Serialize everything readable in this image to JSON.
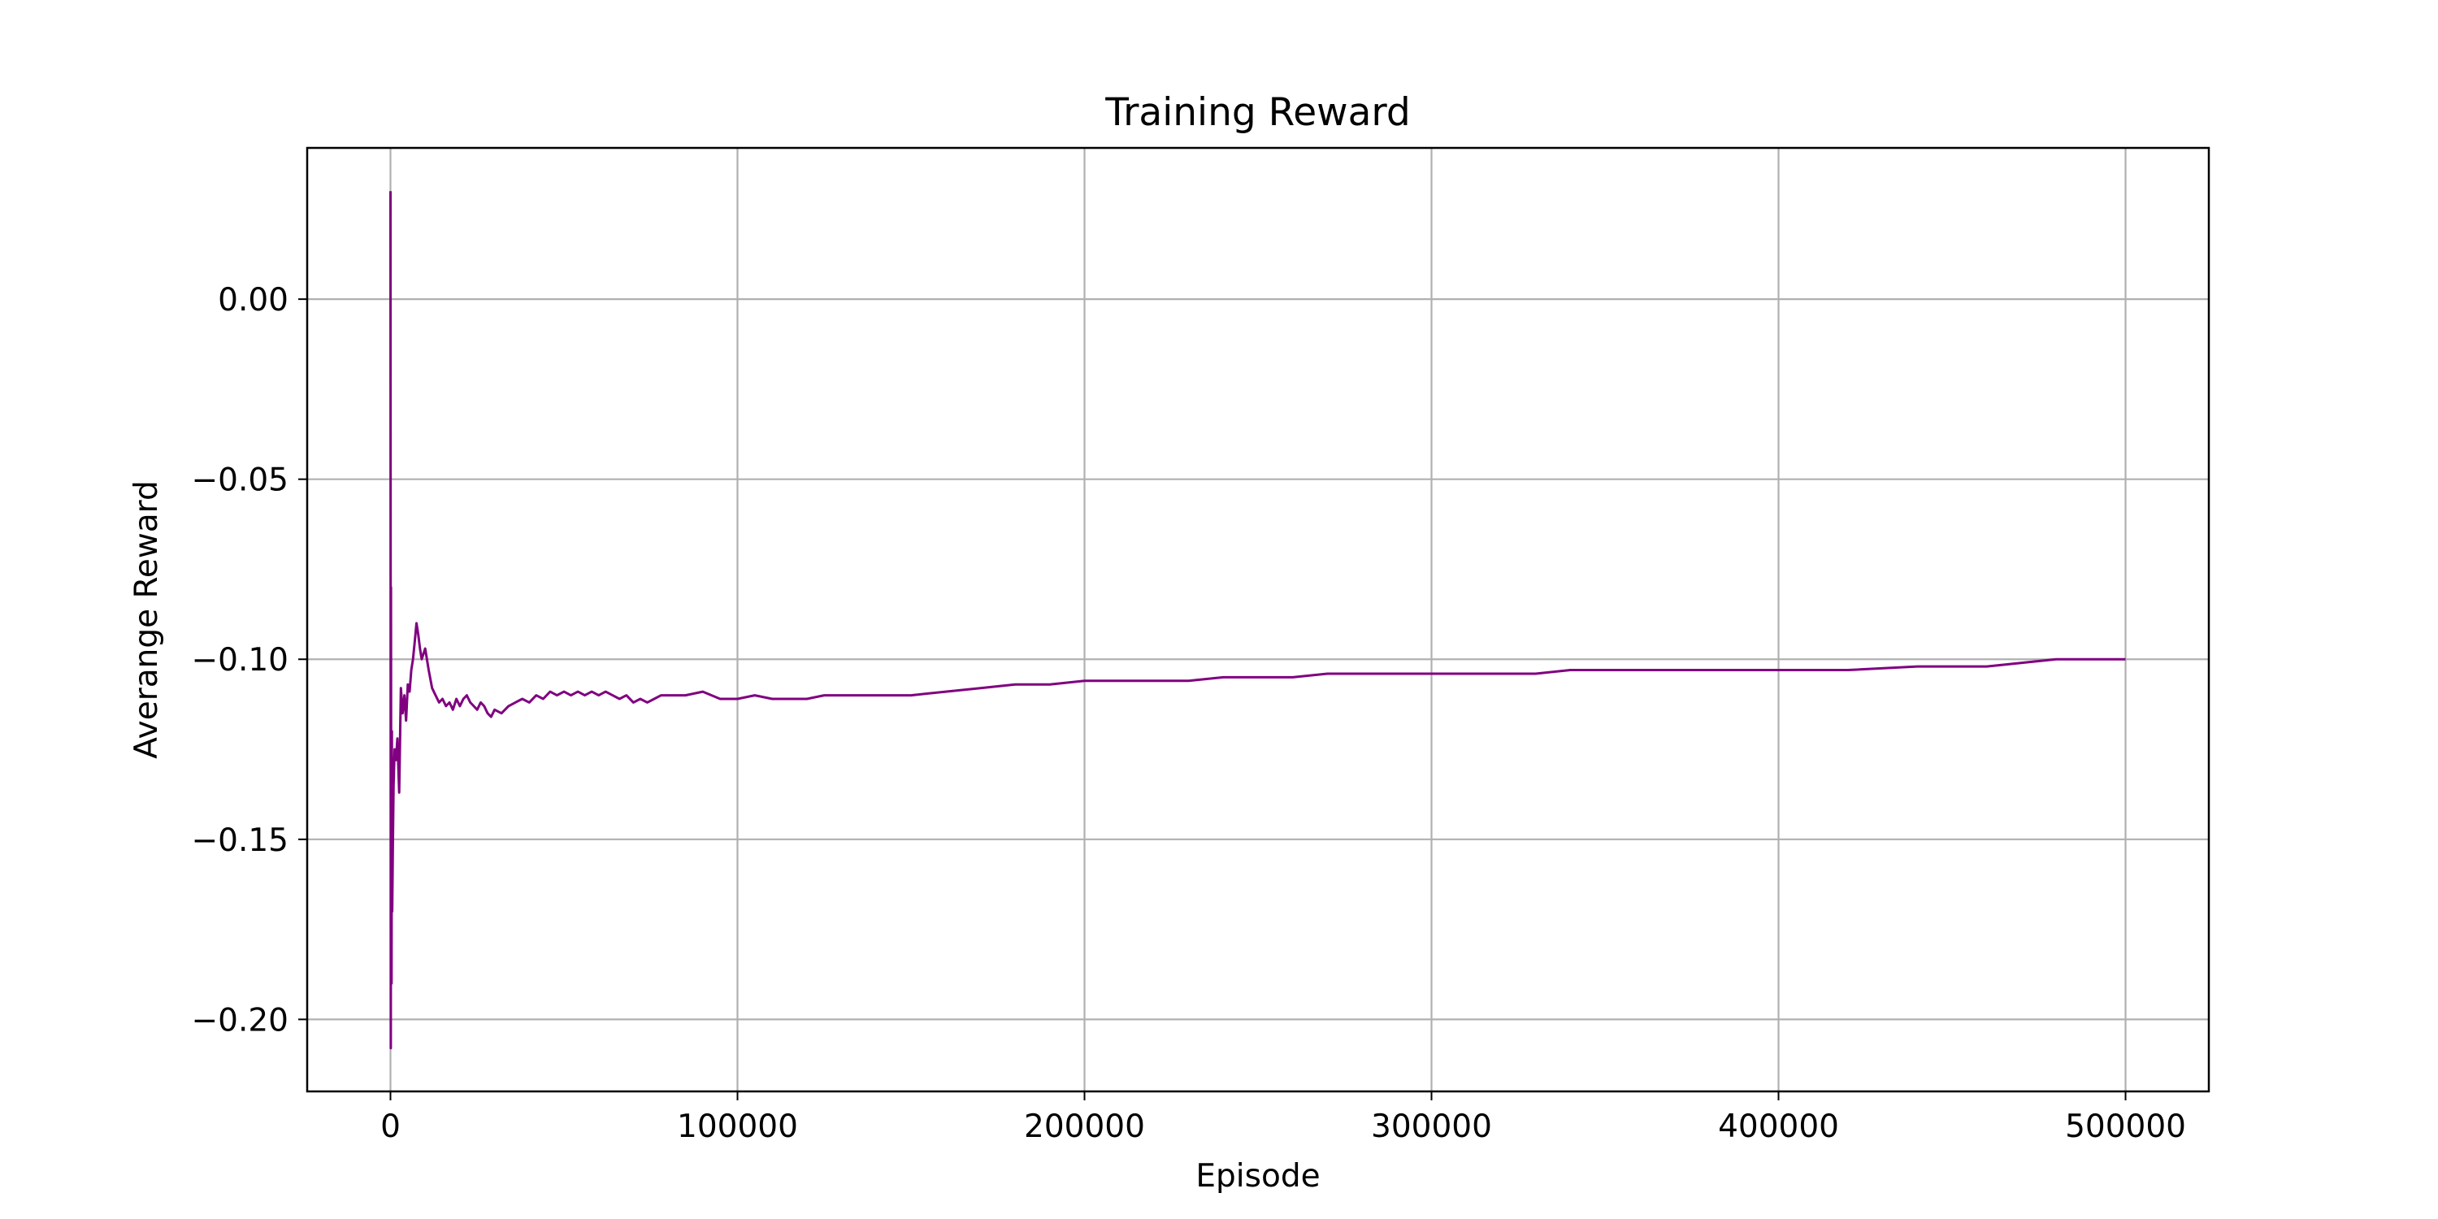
{
  "chart_data": {
    "type": "line",
    "title": "Training Reward",
    "xlabel": "Episode",
    "ylabel": "Averange Reward",
    "xlim": [
      -24000,
      524000
    ],
    "ylim": [
      -0.22,
      0.042
    ],
    "x_ticks": [
      0,
      100000,
      200000,
      300000,
      400000,
      500000
    ],
    "x_tick_labels": [
      "0",
      "100000",
      "200000",
      "300000",
      "400000",
      "500000"
    ],
    "y_ticks": [
      0.0,
      -0.05,
      -0.1,
      -0.15,
      -0.2
    ],
    "y_tick_labels": [
      "0.00",
      "−0.05",
      "−0.10",
      "−0.15",
      "−0.20"
    ],
    "grid": true,
    "line_color": "#800080",
    "series": [
      {
        "x": [
          0,
          100,
          150,
          200,
          300,
          400,
          500,
          700,
          900,
          1200,
          1600,
          2000,
          2500,
          3000,
          3500,
          4000,
          4500,
          5000,
          5500,
          6000,
          6500,
          7000,
          7500,
          8000,
          8500,
          9000,
          10000,
          11000,
          12000,
          13000,
          14000,
          15000,
          16000,
          17000,
          18000,
          19000,
          20000,
          21000,
          22000,
          23000,
          24000,
          25000,
          26000,
          27000,
          28000,
          29000,
          30000,
          32000,
          34000,
          36000,
          38000,
          40000,
          42000,
          44000,
          46000,
          48000,
          50000,
          52000,
          54000,
          56000,
          58000,
          60000,
          62000,
          64000,
          66000,
          68000,
          70000,
          72000,
          74000,
          76000,
          78000,
          80000,
          85000,
          90000,
          95000,
          100000,
          105000,
          110000,
          115000,
          120000,
          125000,
          130000,
          135000,
          140000,
          145000,
          150000,
          160000,
          170000,
          180000,
          190000,
          200000,
          210000,
          220000,
          230000,
          240000,
          250000,
          260000,
          270000,
          280000,
          290000,
          300000,
          310000,
          320000,
          330000,
          340000,
          350000,
          360000,
          370000,
          380000,
          390000,
          400000,
          420000,
          440000,
          460000,
          480000,
          490000,
          500000
        ],
        "y": [
          0.03,
          -0.208,
          -0.08,
          -0.14,
          -0.19,
          -0.12,
          -0.17,
          -0.15,
          -0.135,
          -0.125,
          -0.128,
          -0.122,
          -0.137,
          -0.108,
          -0.115,
          -0.11,
          -0.117,
          -0.107,
          -0.109,
          -0.103,
          -0.1,
          -0.095,
          -0.09,
          -0.093,
          -0.097,
          -0.1,
          -0.097,
          -0.103,
          -0.108,
          -0.11,
          -0.112,
          -0.111,
          -0.113,
          -0.112,
          -0.114,
          -0.111,
          -0.113,
          -0.111,
          -0.11,
          -0.112,
          -0.113,
          -0.114,
          -0.112,
          -0.113,
          -0.115,
          -0.116,
          -0.114,
          -0.115,
          -0.113,
          -0.112,
          -0.111,
          -0.112,
          -0.11,
          -0.111,
          -0.109,
          -0.11,
          -0.109,
          -0.11,
          -0.109,
          -0.11,
          -0.109,
          -0.11,
          -0.109,
          -0.11,
          -0.111,
          -0.11,
          -0.112,
          -0.111,
          -0.112,
          -0.111,
          -0.11,
          -0.11,
          -0.11,
          -0.109,
          -0.111,
          -0.111,
          -0.11,
          -0.111,
          -0.111,
          -0.111,
          -0.11,
          -0.11,
          -0.11,
          -0.11,
          -0.11,
          -0.11,
          -0.109,
          -0.108,
          -0.107,
          -0.107,
          -0.106,
          -0.106,
          -0.106,
          -0.106,
          -0.105,
          -0.105,
          -0.105,
          -0.104,
          -0.104,
          -0.104,
          -0.104,
          -0.104,
          -0.104,
          -0.104,
          -0.103,
          -0.103,
          -0.103,
          -0.103,
          -0.103,
          -0.103,
          -0.103,
          -0.103,
          -0.102,
          -0.102,
          -0.1,
          -0.1,
          -0.1
        ]
      }
    ]
  }
}
